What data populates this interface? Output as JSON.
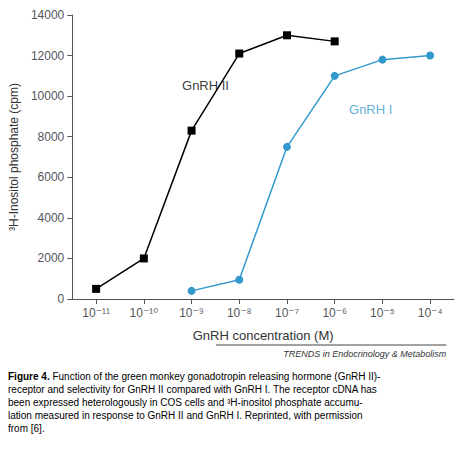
{
  "chart_data": {
    "type": "line",
    "xlabel": "GnRH concentration (M)",
    "ylabel": "³H-Inositol phosphate (cpm)",
    "xlim": [
      -11.5,
      -3.5
    ],
    "xticks": [
      {
        "value": -11,
        "label": "10⁻¹¹"
      },
      {
        "value": -10,
        "label": "10⁻¹⁰"
      },
      {
        "value": -9,
        "label": "10⁻⁹"
      },
      {
        "value": -8,
        "label": "10⁻⁸"
      },
      {
        "value": -7,
        "label": "10⁻⁷"
      },
      {
        "value": -6,
        "label": "10⁻⁶"
      },
      {
        "value": -5,
        "label": "10⁻⁵"
      },
      {
        "value": -4,
        "label": "10⁻⁴"
      }
    ],
    "ylim": [
      0,
      14000
    ],
    "yticks": [
      0,
      2000,
      4000,
      6000,
      8000,
      10000,
      12000,
      14000
    ],
    "grid": false,
    "series": [
      {
        "name": "GnRH II",
        "color": "#000000",
        "marker": "square",
        "x": [
          -11,
          -10,
          -9,
          -8,
          -7,
          -6
        ],
        "values": [
          500,
          2000,
          8300,
          12100,
          13000,
          12700
        ]
      },
      {
        "name": "GnRH I",
        "color": "#3399cc",
        "marker": "circle",
        "x": [
          -9,
          -8,
          -7,
          -6,
          -5,
          -4
        ],
        "values": [
          400,
          950,
          7500,
          11000,
          11800,
          12000
        ]
      }
    ],
    "annotations": [
      {
        "text": "GnRH II",
        "x": -9.2,
        "y": 10200,
        "color": "#000000"
      },
      {
        "text": "GnRH I",
        "x": -5.7,
        "y": 9000,
        "color": "#3399cc"
      }
    ],
    "watermark": "TRENDS in Endocrinology & Metabolism",
    "caption": {
      "bold": "Figure 4.",
      "lines": [
        " Function of the green monkey gonadotropin releasing hormone (GnRH II)-",
        "receptor and selectivity for GnRH II compared with GnRH I. The receptor cDNA has",
        "been expressed heterologously in COS cells and ³H-inositol phosphate accumu-",
        "lation measured in response to GnRH II and GnRH I. Reprinted, with permission",
        "from [6]."
      ]
    }
  }
}
